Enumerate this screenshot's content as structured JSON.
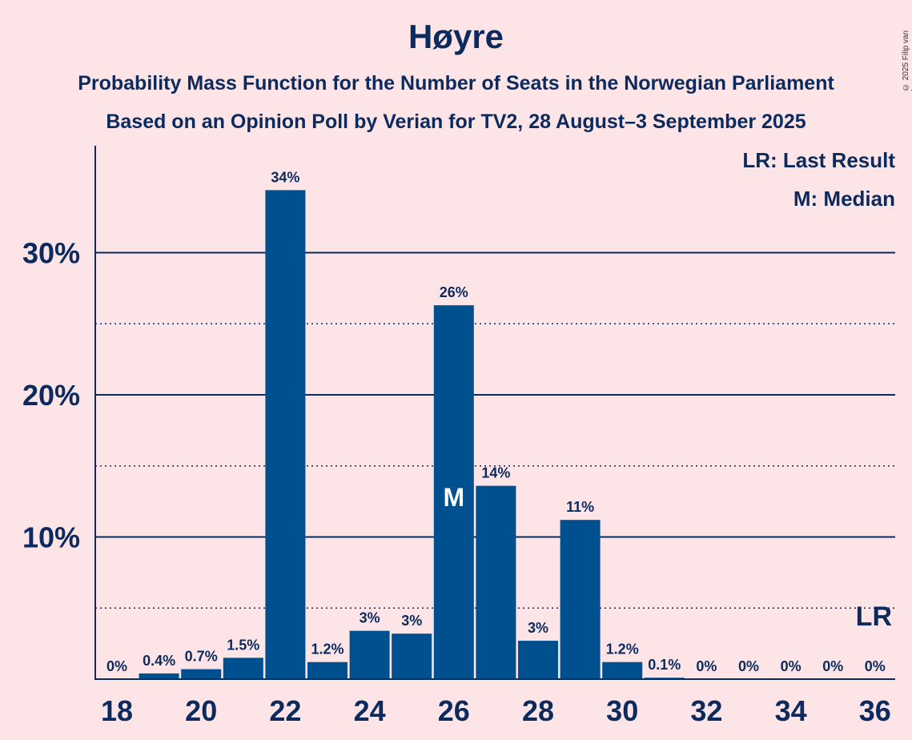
{
  "title": "Høyre",
  "subtitle_1": "Probability Mass Function for the Number of Seats in the Norwegian Parliament",
  "subtitle_2": "Based on an Opinion Poll by Verian for TV2, 28 August–3 September 2025",
  "legend": {
    "last_result": "LR: Last Result",
    "median": "M: Median"
  },
  "copyright": "© 2025 Filip van Laenen",
  "colors": {
    "background": "#fde4e6",
    "bar": "#00508f",
    "text": "#0b2a5e"
  },
  "chart_data": {
    "type": "bar",
    "x": [
      18,
      19,
      20,
      21,
      22,
      23,
      24,
      25,
      26,
      27,
      28,
      29,
      30,
      31,
      32,
      33,
      34,
      35,
      36
    ],
    "values": [
      0,
      0.4,
      0.7,
      1.5,
      34.4,
      1.2,
      3.4,
      3.2,
      26.3,
      13.6,
      2.7,
      11.2,
      1.2,
      0.1,
      0,
      0,
      0,
      0,
      0
    ],
    "value_labels": [
      "0%",
      "0.4%",
      "0.7%",
      "1.5%",
      "34%",
      "1.2%",
      "3%",
      "3%",
      "26%",
      "14%",
      "3%",
      "11%",
      "1.2%",
      "0.1%",
      "0%",
      "0%",
      "0%",
      "0%",
      "0%"
    ],
    "x_tick_labels": [
      "18",
      "20",
      "22",
      "24",
      "26",
      "28",
      "30",
      "32",
      "34",
      "36"
    ],
    "y_ticks_major": [
      10,
      20,
      30
    ],
    "y_tick_labels": [
      "10%",
      "20%",
      "30%"
    ],
    "y_ticks_minor": [
      5,
      15,
      25
    ],
    "ylim": [
      0,
      37.5
    ],
    "median_seat": 26,
    "median_marker": "M",
    "last_result_seat": 36,
    "last_result_marker": "LR"
  }
}
